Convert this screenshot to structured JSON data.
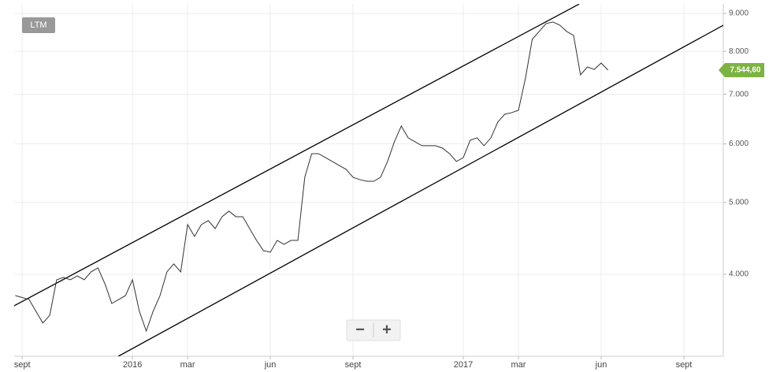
{
  "chart_data": {
    "type": "line",
    "range_button": "LTM",
    "zoom_controls": [
      "−",
      "+"
    ],
    "log_scale": true,
    "grid": true,
    "xlim": [
      -0.29,
      25.43
    ],
    "ylim": [
      3100,
      9270
    ],
    "xticks": [
      {
        "value": 0,
        "label": "sept"
      },
      {
        "value": 4,
        "label": "2016"
      },
      {
        "value": 6,
        "label": "mar"
      },
      {
        "value": 9,
        "label": "jun"
      },
      {
        "value": 12,
        "label": "sept"
      },
      {
        "value": 16,
        "label": "2017"
      },
      {
        "value": 18,
        "label": "mar"
      },
      {
        "value": 21,
        "label": "jun"
      },
      {
        "value": 24,
        "label": "sept"
      }
    ],
    "yticks": [
      {
        "value": 4000,
        "label": "4.000"
      },
      {
        "value": 5000,
        "label": "5.000"
      },
      {
        "value": 6000,
        "label": "6.000"
      },
      {
        "value": 7000,
        "label": "7.000"
      },
      {
        "value": 8000,
        "label": "8.000"
      },
      {
        "value": 9000,
        "label": "9.000"
      }
    ],
    "series": [
      {
        "color": "#333333",
        "x": [
          -0.25,
          0.25,
          0.5,
          0.75,
          1,
          1.25,
          1.5,
          1.75,
          2,
          2.25,
          2.5,
          2.75,
          3,
          3.25,
          3.5,
          3.75,
          4,
          4.25,
          4.5,
          4.75,
          5,
          5.25,
          5.5,
          5.75,
          6,
          6.25,
          6.5,
          6.75,
          7,
          7.25,
          7.5,
          7.75,
          8,
          8.25,
          8.5,
          8.75,
          9,
          9.25,
          9.5,
          9.75,
          10,
          10.25,
          10.5,
          10.75,
          11,
          11.25,
          11.5,
          11.75,
          12,
          12.25,
          12.5,
          12.75,
          13,
          13.25,
          13.5,
          13.75,
          14,
          14.25,
          14.5,
          14.75,
          15,
          15.25,
          15.5,
          15.75,
          16,
          16.25,
          16.5,
          16.75,
          17,
          17.25,
          17.5,
          17.75,
          18,
          18.25,
          18.5,
          18.75,
          19,
          19.25,
          19.5,
          19.75,
          20,
          20.25,
          20.5,
          20.75,
          21,
          21.25
        ],
        "values": [
          3744,
          3698,
          3565,
          3437,
          3521,
          3932,
          3961,
          3932,
          3980,
          3932,
          4030,
          4079,
          3884,
          3653,
          3698,
          3744,
          3932,
          3565,
          3353,
          3565,
          3744,
          4030,
          4130,
          4030,
          4668,
          4499,
          4668,
          4726,
          4611,
          4784,
          4867,
          4784,
          4784,
          4611,
          4444,
          4305,
          4284,
          4444,
          4390,
          4444,
          4444,
          5408,
          5820,
          5820,
          5750,
          5680,
          5610,
          5542,
          5408,
          5368,
          5341,
          5341,
          5408,
          5680,
          6038,
          6342,
          6113,
          6038,
          5965,
          5965,
          5965,
          5920,
          5820,
          5680,
          5750,
          6068,
          6113,
          5965,
          6113,
          6420,
          6578,
          6611,
          6660,
          7345,
          8304,
          8510,
          8721,
          8764,
          8678,
          8510,
          8406,
          7436,
          7620,
          7563,
          7714,
          7545
        ]
      }
    ],
    "trendlines": [
      {
        "color": "#000000",
        "x": [
          -0.29,
          20.2
        ],
        "values": [
          3627,
          9266
        ]
      },
      {
        "color": "#000000",
        "x": [
          3.49,
          25.43
        ],
        "values": [
          3100,
          8675
        ]
      }
    ],
    "last_price": {
      "value": 7544.6,
      "label": "7.544,60",
      "color": "#7cb342"
    }
  }
}
